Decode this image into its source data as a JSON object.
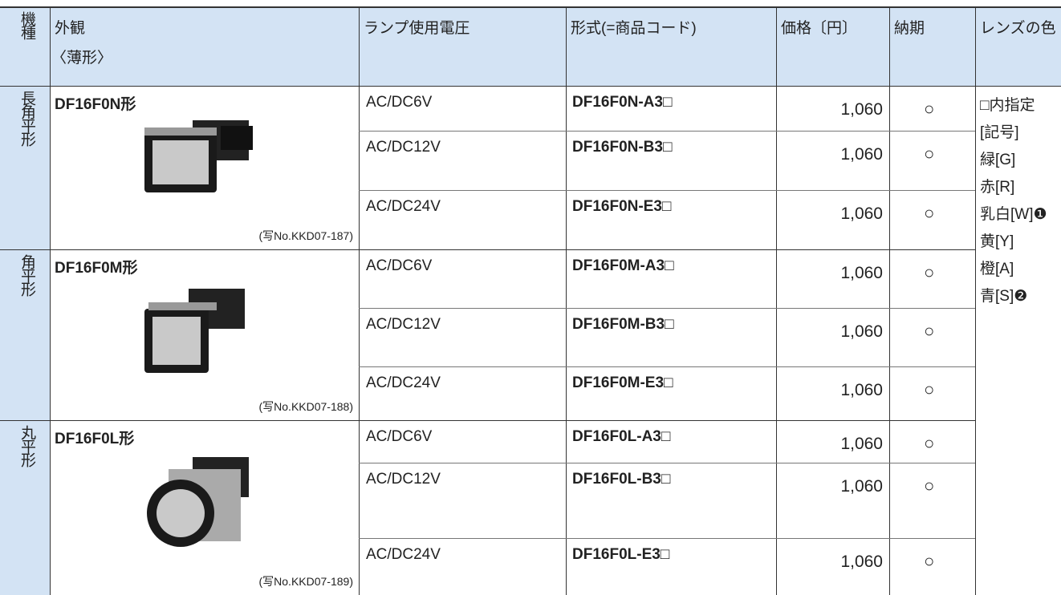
{
  "table": {
    "header": [
      "機種",
      [
        "外観",
        "〈薄形〉"
      ],
      "ランプ使用電圧",
      "形式(=商品コード)",
      "価格〔円〕",
      "納期",
      "レンズの色"
    ],
    "groups": [
      {
        "type": "長角平形",
        "name": "DF16F0N形",
        "caption": "(写No.KKD07-187)",
        "rows": [
          [
            "AC/DC6V",
            "DF16F0N-A3□",
            "1,060",
            "○"
          ],
          [
            "AC/DC12V",
            "DF16F0N-B3□",
            "1,060",
            "○"
          ],
          [
            "AC/DC24V",
            "DF16F0N-E3□",
            "1,060",
            "○"
          ]
        ]
      },
      {
        "type": "角平形",
        "name": "DF16F0M形",
        "caption": "(写No.KKD07-188)",
        "rows": [
          [
            "AC/DC6V",
            "DF16F0M-A3□",
            "1,060",
            "○"
          ],
          [
            "AC/DC12V",
            "DF16F0M-B3□",
            "1,060",
            "○"
          ],
          [
            "AC/DC24V",
            "DF16F0M-E3□",
            "1,060",
            "○"
          ]
        ]
      },
      {
        "type": "丸平形",
        "name": "DF16F0L形",
        "caption": "(写No.KKD07-189)",
        "rows": [
          [
            "AC/DC6V",
            "DF16F0L-A3□",
            "1,060",
            "○"
          ],
          [
            "AC/DC12V",
            "DF16F0L-B3□",
            "1,060",
            "○"
          ],
          [
            "AC/DC24V",
            "DF16F0L-E3□",
            "1,060",
            "○"
          ]
        ]
      }
    ],
    "lens_colors": [
      "□内指定",
      "[記号]",
      "緑[G]",
      "赤[R]",
      "乳白[W]❶",
      "黄[Y]",
      "橙[A]",
      "青[S]❷"
    ]
  }
}
